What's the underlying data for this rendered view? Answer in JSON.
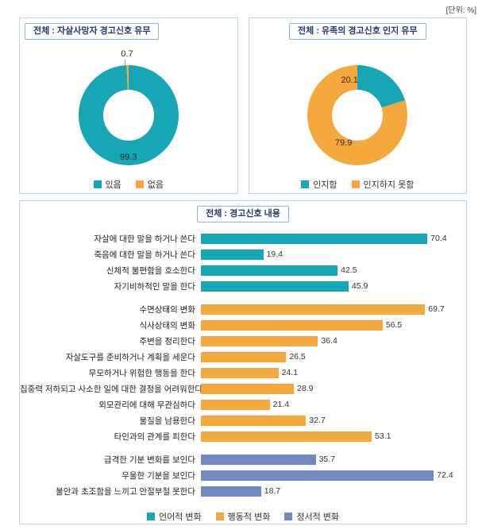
{
  "unit_label": "[단위: %]",
  "colors": {
    "teal": "#16A6B6",
    "orange": "#F5A83C",
    "blue": "#7289C2"
  },
  "chart_data": [
    {
      "type": "pie",
      "donut": true,
      "title": "전체 : 자살사망자 경고신호 유무",
      "labels": [
        "있음",
        "없음"
      ],
      "values": [
        99.3,
        0.7
      ],
      "slice_colors": [
        "teal",
        "orange"
      ],
      "legend_position": "bottom"
    },
    {
      "type": "pie",
      "donut": true,
      "title": "전체 : 유족의 경고신호 인지 유무",
      "labels": [
        "인지함",
        "인지하지 못함"
      ],
      "values": [
        20.1,
        79.9
      ],
      "slice_colors": [
        "teal",
        "orange"
      ],
      "legend_position": "bottom"
    },
    {
      "type": "bar",
      "orientation": "horizontal",
      "title": "전체 : 경고신호 내용",
      "xlim": [
        0,
        80
      ],
      "legend_position": "bottom",
      "groups": [
        {
          "name": "언어적 변화",
          "color": "teal",
          "items": [
            {
              "label": "자살에 대한 말을 하거나 쓴다",
              "value": 70.4
            },
            {
              "label": "죽음에 대한 말을 하거나 쓴다",
              "value": 19.4
            },
            {
              "label": "신체적 불편함을 호소한다",
              "value": 42.5
            },
            {
              "label": "자기비하적인 말을 한다",
              "value": 45.9
            }
          ]
        },
        {
          "name": "행동적 변화",
          "color": "orange",
          "items": [
            {
              "label": "수면상태의 변화",
              "value": 69.7
            },
            {
              "label": "식사상태의 변화",
              "value": 56.5
            },
            {
              "label": "주변을 정리한다",
              "value": 36.4
            },
            {
              "label": "자살도구를 준비하거나 계획을 세운다",
              "value": 26.5
            },
            {
              "label": "무모하거나 위험한 행동을 한다",
              "value": 24.1
            },
            {
              "label": "집중력 저하되고 사소한 일에 대한 결정을 어려워한다",
              "value": 28.9
            },
            {
              "label": "외모관리에 대해 무관심하다",
              "value": 21.4
            },
            {
              "label": "물질을 남용한다",
              "value": 32.7
            },
            {
              "label": "타인과의 관계를 피한다",
              "value": 53.1
            }
          ]
        },
        {
          "name": "정서적 변화",
          "color": "blue",
          "items": [
            {
              "label": "급격한 기분 변화를 보인다",
              "value": 35.7
            },
            {
              "label": "우울한 기분을 보인다",
              "value": 72.4
            },
            {
              "label": "불안과 초조함을 느끼고 안절부절 못한다",
              "value": 18.7
            }
          ]
        }
      ]
    }
  ]
}
